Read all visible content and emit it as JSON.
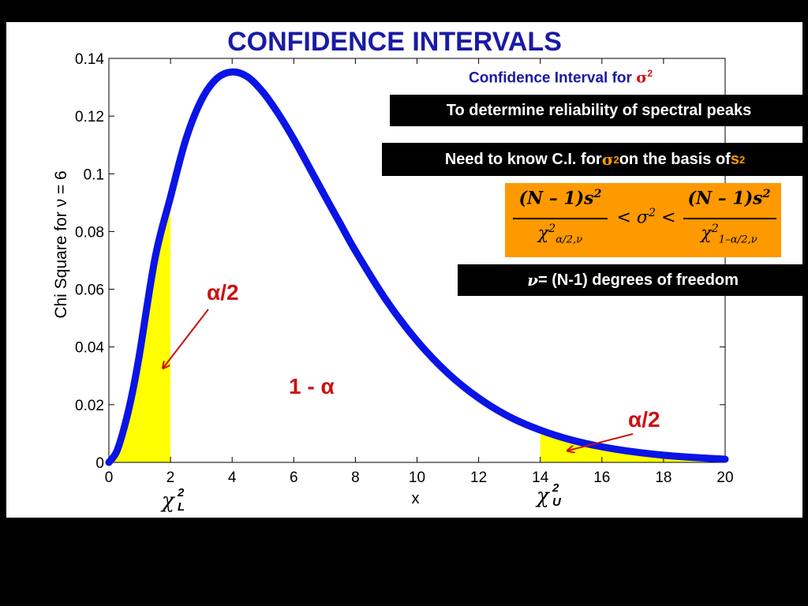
{
  "slide": {
    "title": "CONFIDENCE INTERVALS",
    "subtitle_text": "Confidence Interval for ",
    "subtitle_symbol": "σ",
    "subtitle_exp": "2",
    "box1": "To determine reliability of spectral peaks",
    "box2_pre": "Need to know C.I. for ",
    "box2_sym": "σ",
    "box2_exp": "2",
    "box2_mid": " on the basis of ",
    "box2_s": "s",
    "box2_s_exp": "2",
    "box3_sym": "ν",
    "box3_text": " = (N-1) degrees of freedom",
    "formula": {
      "num_left": "(N – 1)s",
      "num_exp": "2",
      "den_left_base": "χ",
      "den_left_sup": "2",
      "den_left_sub": "α/2,ν",
      "middle": "<  σ",
      "middle_exp": "2",
      "middle_lt": "<",
      "num_right": "(N – 1)s",
      "num_right_exp": "2",
      "den_right_base": "χ",
      "den_right_sup": "2",
      "den_right_sub": "1–α/2,ν"
    },
    "annotations": {
      "left_alpha": "α/2",
      "center": "1 - α",
      "right_alpha": "α/2"
    },
    "chi_lower": {
      "base": "χ",
      "sup": "2",
      "sub": "L"
    },
    "chi_upper": {
      "base": "χ",
      "sup": "2",
      "sub": "U"
    },
    "colors": {
      "curve": "#0a14e6",
      "shade": "#ffff00",
      "title": "#1a1aa6",
      "annotation": "#cc1111",
      "formula_bg": "#ff9900"
    }
  },
  "chart_data": {
    "type": "line",
    "xlabel": "x",
    "ylabel": "Chi Square for ν = 6",
    "xlim": [
      0,
      20
    ],
    "ylim": [
      0,
      0.14
    ],
    "xticks": [
      0,
      2,
      4,
      6,
      8,
      10,
      12,
      14,
      16,
      18,
      20
    ],
    "yticks": [
      0,
      0.02,
      0.04,
      0.06,
      0.08,
      0.1,
      0.12,
      0.14
    ],
    "ytick_labels": [
      "0",
      "0.02",
      "0.04",
      "0.06",
      "0.08",
      "0.1",
      "0.12",
      "0.14"
    ],
    "series": [
      {
        "x": [
          0,
          0.25,
          0.5,
          0.75,
          1,
          1.5,
          2,
          2.5,
          3,
          3.5,
          4,
          4.5,
          5,
          5.5,
          6,
          6.5,
          7,
          7.5,
          8,
          9,
          10,
          11,
          12,
          13,
          14,
          15,
          16,
          17,
          18,
          19,
          20
        ],
        "y": [
          0,
          0.0037,
          0.0122,
          0.0235,
          0.0379,
          0.0709,
          0.092,
          0.112,
          0.1255,
          0.133,
          0.1353,
          0.1336,
          0.1283,
          0.1208,
          0.112,
          0.1023,
          0.0925,
          0.0829,
          0.0733,
          0.0562,
          0.0421,
          0.0309,
          0.0223,
          0.0158,
          0.0112,
          0.0078,
          0.0054,
          0.0037,
          0.0025,
          0.0017,
          0.0011
        ]
      }
    ],
    "shaded_regions": [
      {
        "from": 0,
        "to": 2
      },
      {
        "from": 14,
        "to": 20
      }
    ]
  }
}
